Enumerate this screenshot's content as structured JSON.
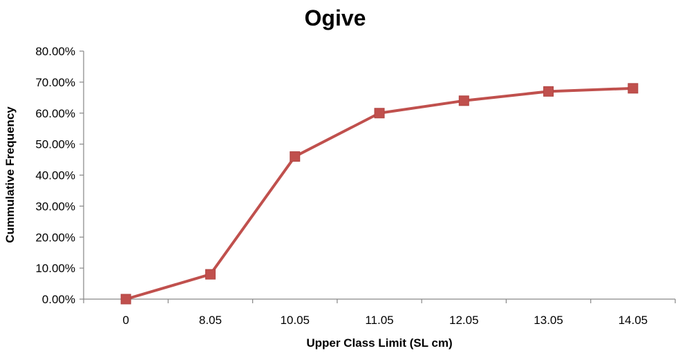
{
  "chart_data": {
    "type": "line",
    "title": "Ogive",
    "xlabel": "Upper Class Limit (SL cm)",
    "ylabel": "Cummulative Frequency",
    "categories": [
      "0",
      "8.05",
      "10.05",
      "11.05",
      "12.05",
      "13.05",
      "14.05"
    ],
    "series": [
      {
        "values": [
          0.0,
          8.0,
          46.0,
          60.0,
          64.0,
          67.0,
          68.0
        ]
      }
    ],
    "y_ticks": [
      "0.00%",
      "10.00%",
      "20.00%",
      "30.00%",
      "40.00%",
      "50.00%",
      "60.00%",
      "70.00%",
      "80.00%"
    ],
    "ylim": [
      0,
      80
    ],
    "y_unit": "percent",
    "grid": false,
    "legend": "none",
    "marker": "square",
    "series_color": "#C0504D"
  }
}
